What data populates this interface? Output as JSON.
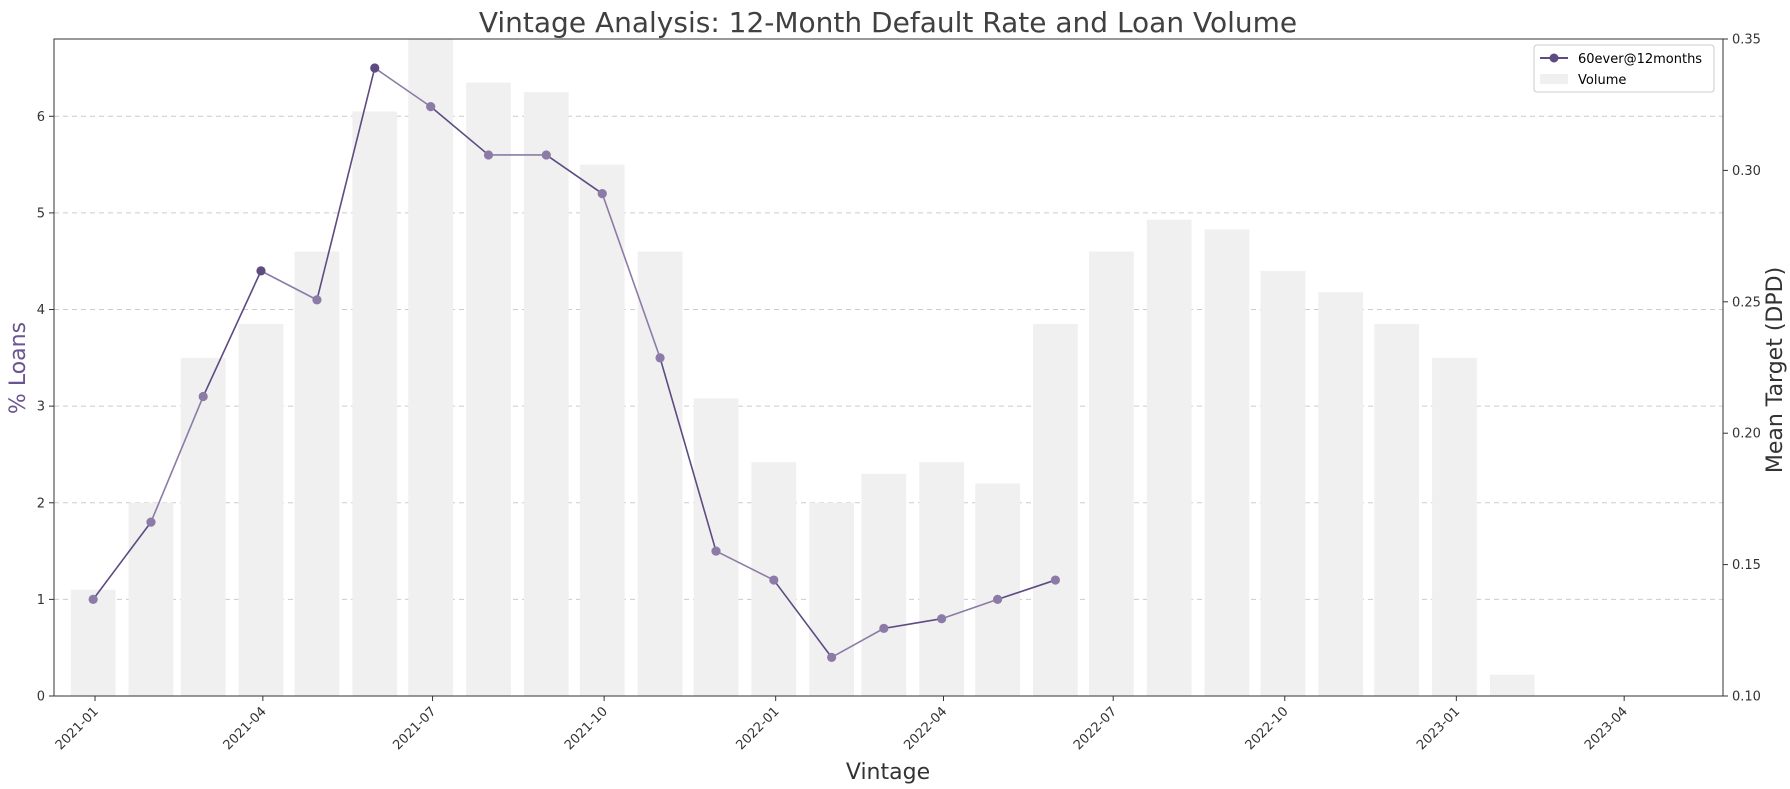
{
  "chart_data": {
    "type": "bar+line",
    "title": "Vintage Analysis: 12-Month Default Rate and Loan Volume",
    "xlabel": "Vintage",
    "ylabel_left": "% Loans",
    "ylabel_right": "Mean Target (DPD)",
    "x_tick_labels": [
      "2021-01",
      "2021-04",
      "2021-07",
      "2021-10",
      "2022-01",
      "2022-04",
      "2022-07",
      "2022-10",
      "2023-01",
      "2023-04"
    ],
    "x_tick_dates": [
      "2021-01-01",
      "2021-04-01",
      "2021-07-01",
      "2021-10-01",
      "2022-01-01",
      "2022-04-01",
      "2022-07-01",
      "2022-10-01",
      "2023-01-01",
      "2023-04-01"
    ],
    "xlim": [
      "2020-12-10",
      "2023-05-24"
    ],
    "ylim_left": [
      0,
      6.8
    ],
    "yticks_left": [
      0,
      1,
      2,
      3,
      4,
      5,
      6
    ],
    "ylim_right": [
      0.1,
      0.35
    ],
    "yticks_right": [
      "0.10",
      "0.15",
      "0.20",
      "0.25",
      "0.30",
      "0.35"
    ],
    "grid": "horizontal dashed",
    "legend_position": "top-right",
    "series": [
      {
        "name": "Volume",
        "kind": "bar",
        "axis": "left",
        "color": "#f0f0f0",
        "x": [
          "2020-12-31",
          "2021-01-31",
          "2021-02-28",
          "2021-03-31",
          "2021-04-30",
          "2021-05-31",
          "2021-06-30",
          "2021-07-31",
          "2021-08-31",
          "2021-09-30",
          "2021-10-31",
          "2021-11-30",
          "2021-12-31",
          "2022-01-31",
          "2022-02-28",
          "2022-03-31",
          "2022-04-30",
          "2022-05-31",
          "2022-06-30",
          "2022-07-31",
          "2022-08-31",
          "2022-09-30",
          "2022-10-31",
          "2022-11-30",
          "2022-12-31",
          "2023-01-31"
        ],
        "values": [
          1.1,
          2.0,
          3.5,
          3.85,
          4.6,
          6.05,
          6.8,
          6.35,
          6.25,
          5.5,
          4.6,
          3.08,
          2.42,
          2.0,
          2.3,
          2.42,
          2.2,
          3.85,
          4.6,
          4.93,
          4.83,
          4.4,
          4.18,
          3.85,
          3.5,
          0.22
        ]
      },
      {
        "name": "60ever@12months",
        "kind": "line",
        "axis": "left",
        "color": "#5e4b82",
        "marker_color_light": "#8b7ba6",
        "x": [
          "2020-12-31",
          "2021-01-31",
          "2021-02-28",
          "2021-03-31",
          "2021-04-30",
          "2021-05-31",
          "2021-06-30",
          "2021-07-31",
          "2021-08-31",
          "2021-09-30",
          "2021-10-31",
          "2021-11-30",
          "2021-12-31",
          "2022-01-31",
          "2022-02-28",
          "2022-03-31",
          "2022-04-30",
          "2022-05-31"
        ],
        "values": [
          1.0,
          1.8,
          3.1,
          4.4,
          4.1,
          6.5,
          6.1,
          5.6,
          5.6,
          5.2,
          3.5,
          1.5,
          1.2,
          0.4,
          0.7,
          0.8,
          1.0,
          1.2
        ]
      }
    ]
  }
}
